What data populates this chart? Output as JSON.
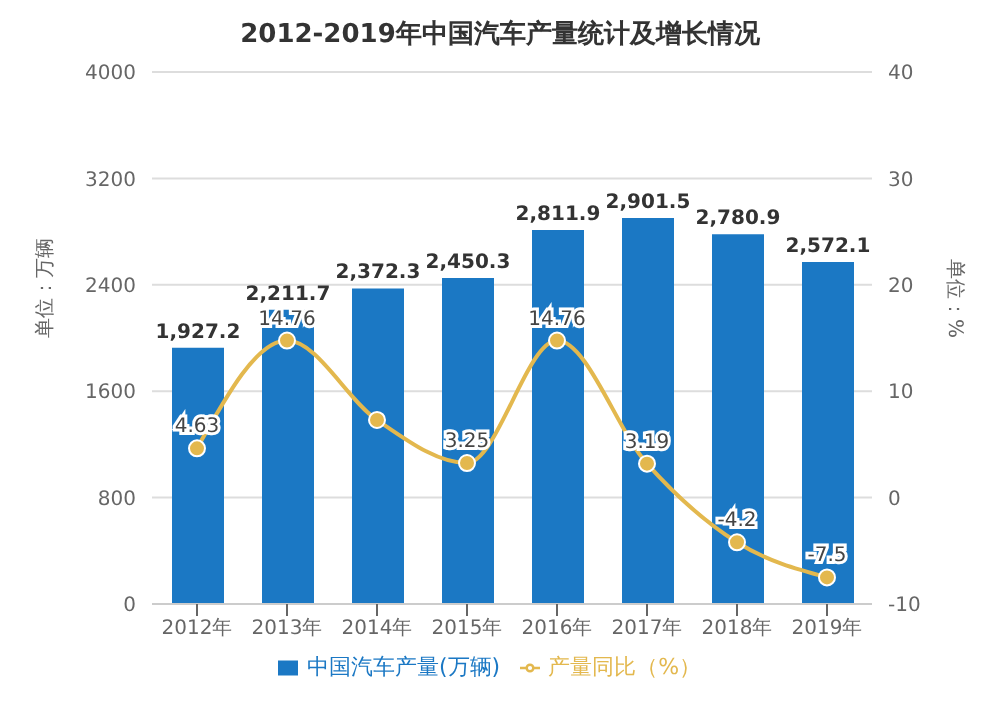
{
  "chart_data": {
    "type": "bar",
    "title": "2012-2019年中国汽车产量统计及增长情况",
    "categories": [
      "2012年",
      "2013年",
      "2014年",
      "2015年",
      "2016年",
      "2017年",
      "2018年",
      "2019年"
    ],
    "ylabel": "单位：万辆",
    "y2label": "单位：%",
    "series": [
      {
        "name": "中国汽车产量(万辆)",
        "color": "#1b78c4",
        "values": [
          1927.2,
          2211.7,
          2372.3,
          2450.3,
          2811.9,
          2901.5,
          2780.9,
          2572.1
        ],
        "value_labels": [
          "1,927.2",
          "2,211.7",
          "2,372.3",
          "2,450.3",
          "2,811.9",
          "2,901.5",
          "2,780.9",
          "2,572.1"
        ]
      },
      {
        "name": "产量同比（%）",
        "type": "line",
        "axis": "y2",
        "color": "#e3b84e",
        "values": [
          4.63,
          14.76,
          7.3,
          3.25,
          14.76,
          3.19,
          -4.2,
          -7.5
        ],
        "value_labels": [
          "4.63",
          "14.76",
          null,
          "3.25",
          "14.76",
          "3.19",
          "-4.2",
          "-7.5"
        ]
      }
    ],
    "ylim": [
      0,
      4000
    ],
    "yticks": [
      0,
      800,
      1600,
      2400,
      3200,
      4000
    ],
    "y2lim": [
      -10,
      40
    ],
    "y2ticks": [
      -10,
      0,
      10,
      20,
      30,
      40
    ],
    "grid": "y",
    "legend": "bottom",
    "marker": "circle",
    "line_style": "solid"
  }
}
